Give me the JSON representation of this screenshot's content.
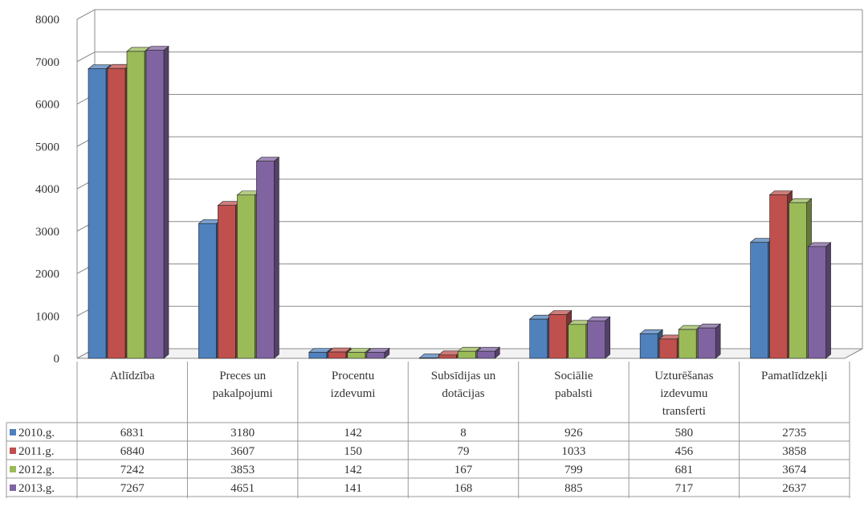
{
  "chart_data": {
    "type": "bar",
    "categories": [
      [
        "Atlīdzība"
      ],
      [
        "Preces un",
        "pakalpojumi"
      ],
      [
        "Procentu",
        "izdevumi"
      ],
      [
        "Subsīdijas un",
        "dotācijas"
      ],
      [
        "Sociālie",
        "pabalsti"
      ],
      [
        "Uzturēšanas",
        "izdevumu",
        "transferti"
      ],
      [
        "Pamatlīdzekļi"
      ]
    ],
    "series": [
      {
        "name": "2010.g.",
        "color": "#4F81BD",
        "values": [
          6831,
          3180,
          142,
          8,
          926,
          580,
          2735
        ]
      },
      {
        "name": "2011.g.",
        "color": "#C0504D",
        "values": [
          6840,
          3607,
          150,
          79,
          1033,
          456,
          3858
        ]
      },
      {
        "name": "2012.g.",
        "color": "#9BBB59",
        "values": [
          7242,
          3853,
          142,
          167,
          799,
          681,
          3674
        ]
      },
      {
        "name": "2013.g.",
        "color": "#8064A2",
        "values": [
          7267,
          4651,
          141,
          168,
          885,
          717,
          2637
        ]
      }
    ],
    "yticks": [
      "0",
      "1000",
      "2000",
      "3000",
      "4000",
      "5000",
      "6000",
      "7000",
      "8000"
    ],
    "ylim": [
      0,
      8000
    ],
    "grid": true,
    "legend": "data-table-left",
    "style": "3d-clustered-column"
  }
}
